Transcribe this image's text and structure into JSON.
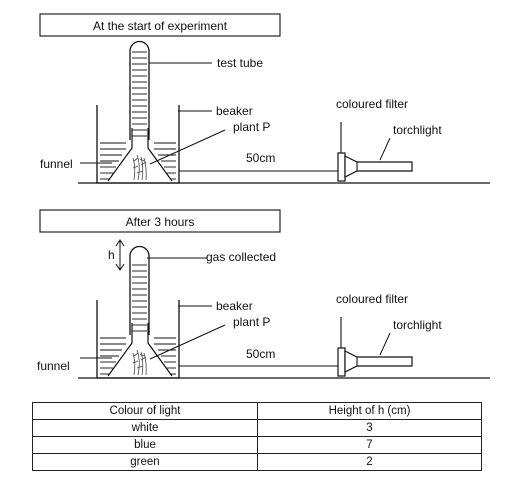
{
  "setup_start": {
    "title": "At the start of experiment",
    "labels": {
      "test_tube": "test tube",
      "beaker": "beaker",
      "plant": "plant P",
      "funnel": "funnel",
      "distance": "50cm",
      "filter": "coloured filter",
      "torch": "torchlight"
    }
  },
  "setup_after": {
    "title": "After 3 hours",
    "labels": {
      "height": "h",
      "gas": "gas collected",
      "beaker": "beaker",
      "plant": "plant P",
      "funnel": "funnel",
      "distance": "50cm",
      "filter": "coloured filter",
      "torch": "torchlight"
    }
  },
  "table": {
    "headers": [
      "Colour of light",
      "Height of h (cm)"
    ],
    "rows": [
      [
        "white",
        "3"
      ],
      [
        "blue",
        "7"
      ],
      [
        "green",
        "2"
      ]
    ]
  },
  "colors": {
    "ink": "#111111"
  }
}
